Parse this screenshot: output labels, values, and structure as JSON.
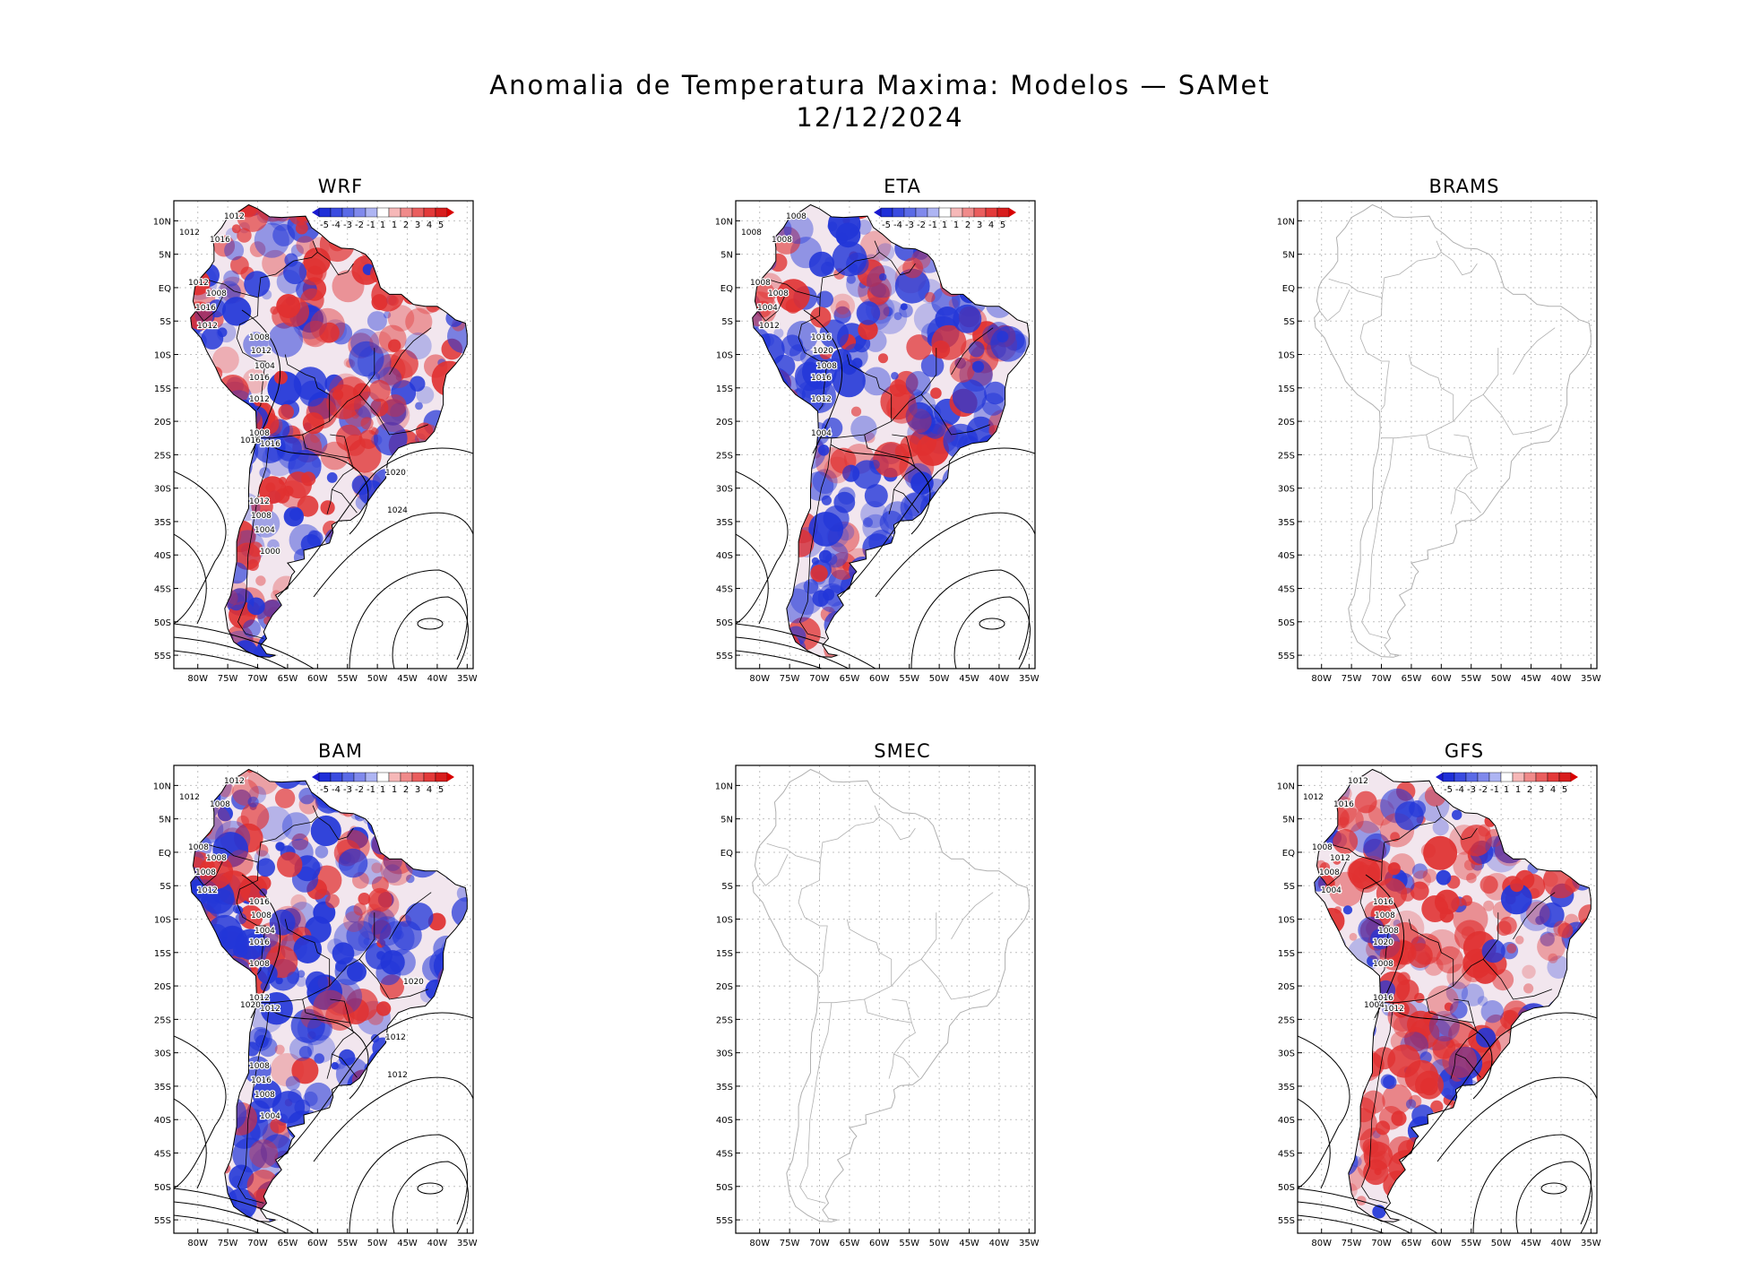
{
  "title": "Anomalia de Temperatura Maxima: Modelos — SAMet",
  "date": "12/12/2024",
  "colors": {
    "warm": "#e03030",
    "cold": "#2236d8",
    "coast": "#b0b0b0",
    "isobar": "#000000",
    "grid": "#c0c0c0"
  },
  "lat_ticks": [
    "10N",
    "5N",
    "EQ",
    "5S",
    "10S",
    "15S",
    "20S",
    "25S",
    "30S",
    "35S",
    "40S",
    "45S",
    "50S",
    "55S"
  ],
  "lon_ticks": [
    "80W",
    "75W",
    "70W",
    "65W",
    "60W",
    "55W",
    "50W",
    "45W",
    "40W",
    "35W"
  ],
  "colorbar_labels": [
    "-5",
    "-4",
    "-3",
    "-2",
    "-1",
    "1",
    "1",
    "2",
    "3",
    "4",
    "5"
  ],
  "panels": [
    {
      "name": "WRF",
      "has_data": true,
      "dominant": "mixed",
      "isobar_labels": [
        "1012",
        "1012",
        "1016",
        "1012",
        "1008",
        "1016",
        "1012",
        "1008",
        "1012",
        "1004",
        "1016",
        "1012",
        "1008",
        "1016",
        "1016",
        "1012",
        "1008",
        "1020",
        "1024",
        "1004",
        "1000"
      ]
    },
    {
      "name": "ETA",
      "has_data": true,
      "dominant": "cold",
      "isobar_labels": [
        "1008",
        "1008",
        "1008",
        "1008",
        "1008",
        "1004",
        "1012",
        "1016",
        "1020",
        "1008",
        "1016",
        "1012",
        "1004"
      ]
    },
    {
      "name": "BRAMS",
      "has_data": false,
      "dominant": "none",
      "isobar_labels": []
    },
    {
      "name": "BAM",
      "has_data": true,
      "dominant": "cold",
      "isobar_labels": [
        "1012",
        "1012",
        "1008",
        "1008",
        "1008",
        "1008",
        "1012",
        "1016",
        "1008",
        "1004",
        "1016",
        "1008",
        "1012",
        "1012",
        "1020",
        "1008",
        "1016",
        "1012",
        "1012",
        "1008",
        "1004",
        "1020"
      ]
    },
    {
      "name": "SMEC",
      "has_data": false,
      "dominant": "none",
      "isobar_labels": []
    },
    {
      "name": "GFS",
      "has_data": true,
      "dominant": "warm",
      "isobar_labels": [
        "1012",
        "1012",
        "1016",
        "1008",
        "1012",
        "1008",
        "1004",
        "1016",
        "1008",
        "1008",
        "1020",
        "1008",
        "1016",
        "1012",
        "1004"
      ]
    }
  ]
}
